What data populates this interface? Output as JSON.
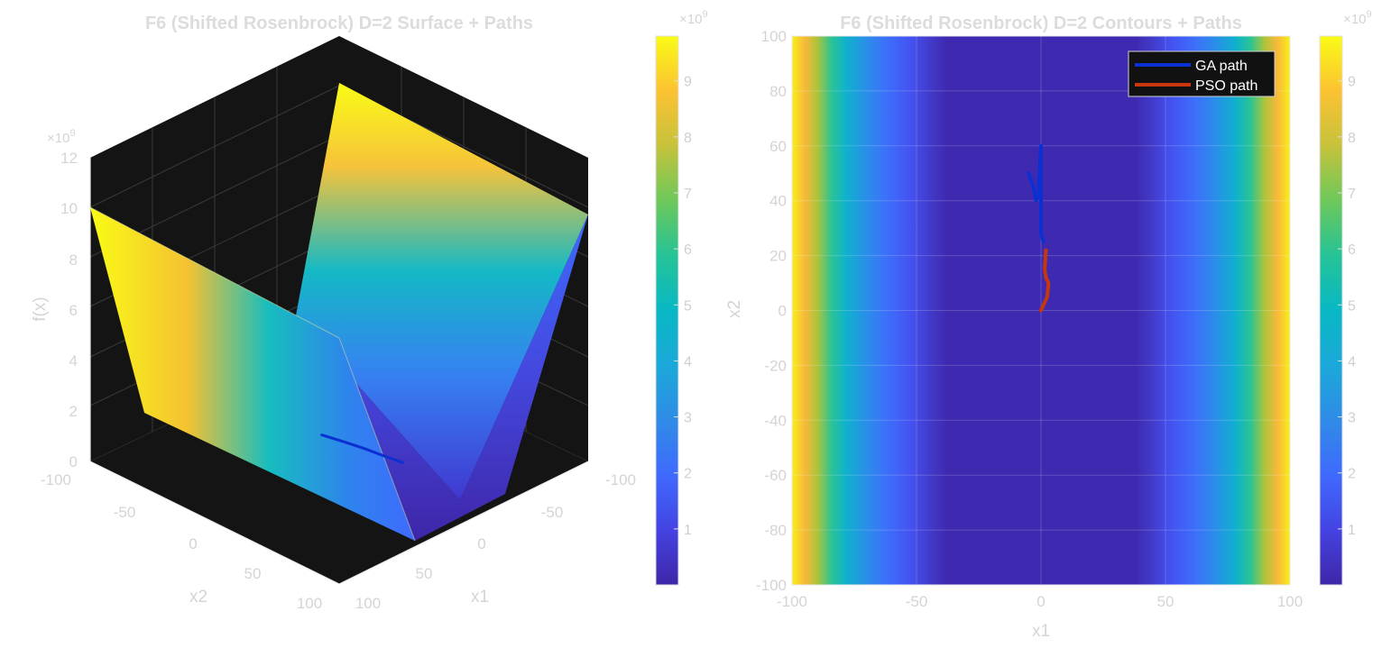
{
  "chart_data": [
    {
      "type": "surface",
      "title": "F6 (Shifted Rosenbrock) D=2 Surface + Paths",
      "xlabel": "x1",
      "ylabel": "x2",
      "zlabel": "f(x)",
      "xlim": [
        -100,
        100
      ],
      "ylim": [
        -100,
        100
      ],
      "zlim": [
        0,
        12
      ],
      "z_exponent": "×10",
      "z_exponent_power": "9",
      "x_ticks": [
        "-100",
        "-50",
        "0",
        "50",
        "100"
      ],
      "y_ticks": [
        "-100",
        "-50",
        "0",
        "50",
        "100"
      ],
      "z_ticks": [
        "0",
        "2",
        "4",
        "6",
        "8",
        "10",
        "12"
      ],
      "colormap": "parula",
      "background": "#141414",
      "colorbar": {
        "range": [
          0,
          9.8
        ],
        "ticks": [
          "1",
          "2",
          "3",
          "4",
          "5",
          "6",
          "7",
          "8",
          "9"
        ],
        "exponent": "×10",
        "exponent_power": "9"
      },
      "series": [
        {
          "x": [
            -4,
            -2,
            0,
            3,
            6
          ],
          "y": [
            47,
            35,
            20,
            5,
            -8
          ],
          "color": "#0b2fd0"
        }
      ]
    },
    {
      "type": "contour",
      "title": "F6 (Shifted Rosenbrock) D=2 Contours + Paths",
      "xlabel": "x1",
      "ylabel": "x2",
      "xlim": [
        -100,
        100
      ],
      "ylim": [
        -100,
        100
      ],
      "x_ticks": [
        "-100",
        "-50",
        "0",
        "50",
        "100"
      ],
      "y_ticks": [
        "-100",
        "-80",
        "-60",
        "-40",
        "-20",
        "0",
        "20",
        "40",
        "60",
        "80",
        "100"
      ],
      "grid": true,
      "colormap": "parula",
      "colorbar": {
        "range": [
          0,
          9.8
        ],
        "ticks": [
          "1",
          "2",
          "3",
          "4",
          "5",
          "6",
          "7",
          "8",
          "9"
        ],
        "exponent": "×10",
        "exponent_power": "9"
      },
      "legend_position": "top-right",
      "series": [
        {
          "name": "GA path",
          "color": "#0b2fd0",
          "x": [
            -5,
            -3,
            -2,
            -1,
            0,
            0,
            0,
            0,
            1
          ],
          "y": [
            50,
            45,
            40,
            42,
            60,
            45,
            35,
            28,
            25
          ]
        },
        {
          "name": "PSO path",
          "color": "#c8360d",
          "x": [
            2,
            1.5,
            2,
            3,
            2.5,
            1,
            0
          ],
          "y": [
            22,
            15,
            12,
            10,
            5,
            2,
            0
          ]
        }
      ]
    }
  ]
}
